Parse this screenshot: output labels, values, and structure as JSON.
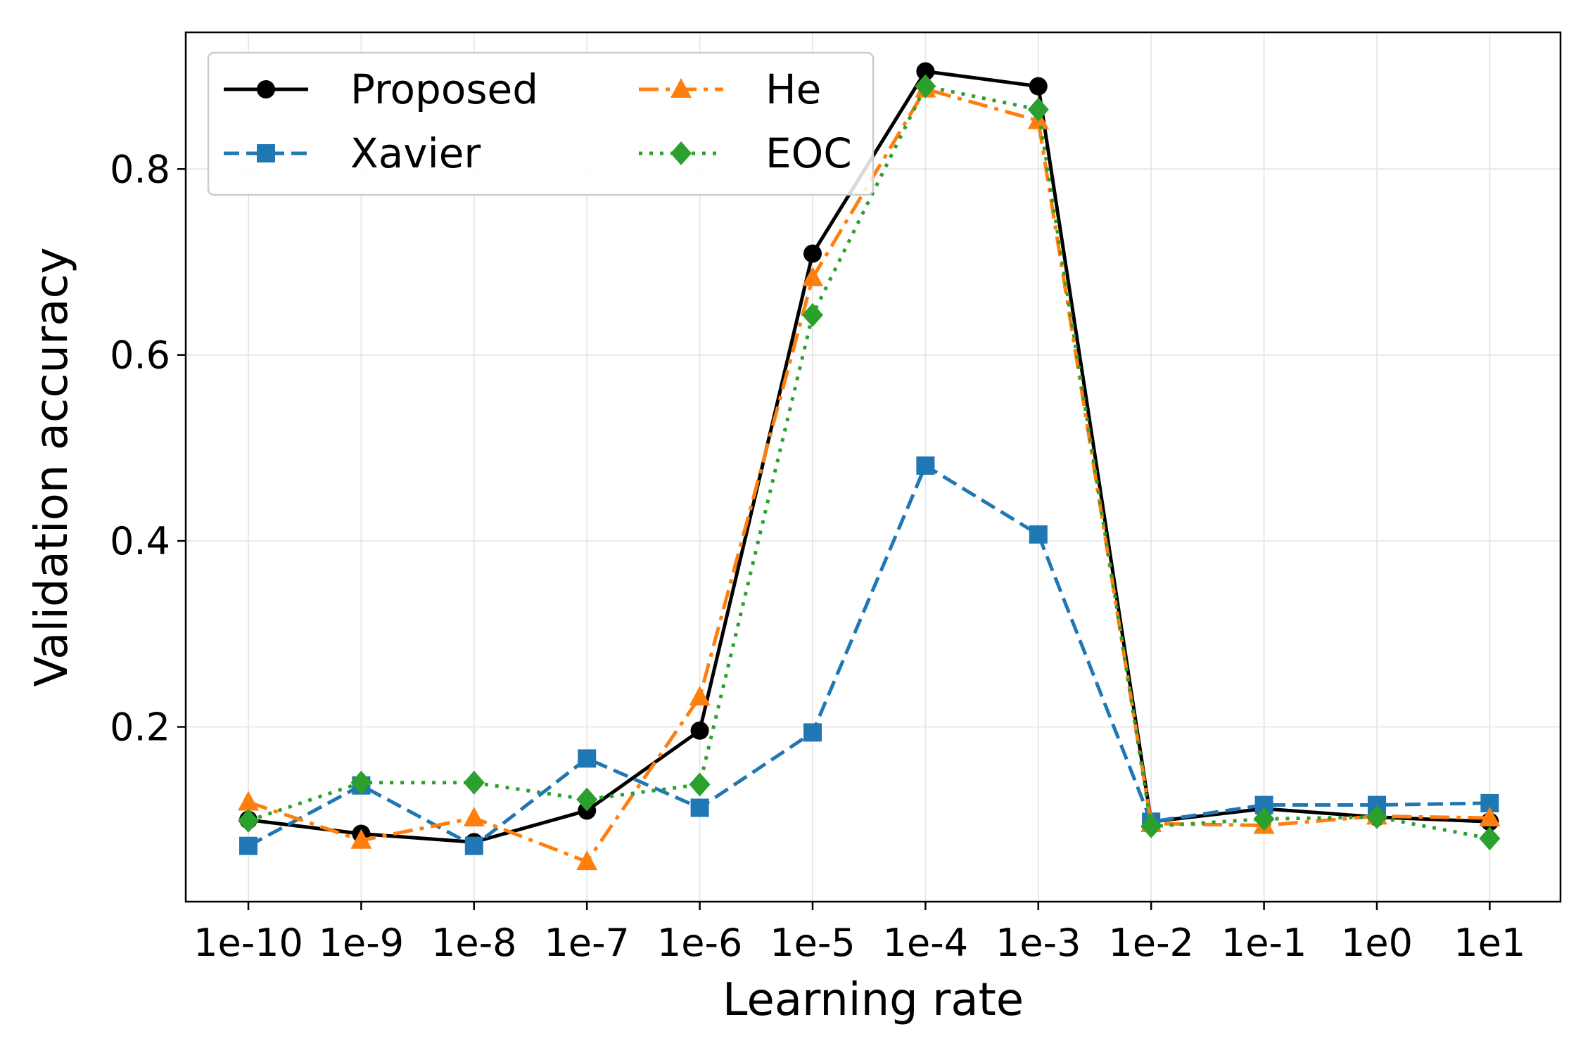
{
  "chart_data": {
    "type": "line",
    "xlabel": "Learning rate",
    "ylabel": "Validation accuracy",
    "categories": [
      "1e-10",
      "1e-9",
      "1e-8",
      "1e-7",
      "1e-6",
      "1e-5",
      "1e-4",
      "1e-3",
      "1e-2",
      "1e-1",
      "1e0",
      "1e1"
    ],
    "ylim": [
      0.012,
      0.947
    ],
    "yticks": [
      {
        "value": 0.2,
        "label": "0.2"
      },
      {
        "value": 0.4,
        "label": "0.4"
      },
      {
        "value": 0.6,
        "label": "0.6"
      },
      {
        "value": 0.8,
        "label": "0.8"
      }
    ],
    "grid": true,
    "legend": {
      "placement": "top-left",
      "columns": 2
    },
    "series": [
      {
        "name": "Proposed",
        "color": "#000000",
        "marker": "circle",
        "dash": "solid",
        "values": [
          0.1,
          0.085,
          0.076,
          0.11,
          0.196,
          0.709,
          0.905,
          0.889,
          0.098,
          0.112,
          0.103,
          0.098
        ]
      },
      {
        "name": "Xavier",
        "color": "#1f77b4",
        "marker": "square",
        "dash": "dashed",
        "values": [
          0.072,
          0.137,
          0.072,
          0.166,
          0.113,
          0.194,
          0.481,
          0.407,
          0.098,
          0.116,
          0.116,
          0.118
        ]
      },
      {
        "name": "He",
        "color": "#ff7f0e",
        "marker": "triangle",
        "dash": "dashdot",
        "values": [
          0.119,
          0.078,
          0.102,
          0.055,
          0.232,
          0.683,
          0.886,
          0.852,
          0.096,
          0.094,
          0.104,
          0.102
        ]
      },
      {
        "name": "EOC",
        "color": "#2ca02c",
        "marker": "diamond",
        "dash": "dotted",
        "values": [
          0.099,
          0.14,
          0.14,
          0.122,
          0.138,
          0.643,
          0.889,
          0.864,
          0.093,
          0.101,
          0.103,
          0.08
        ]
      }
    ]
  }
}
